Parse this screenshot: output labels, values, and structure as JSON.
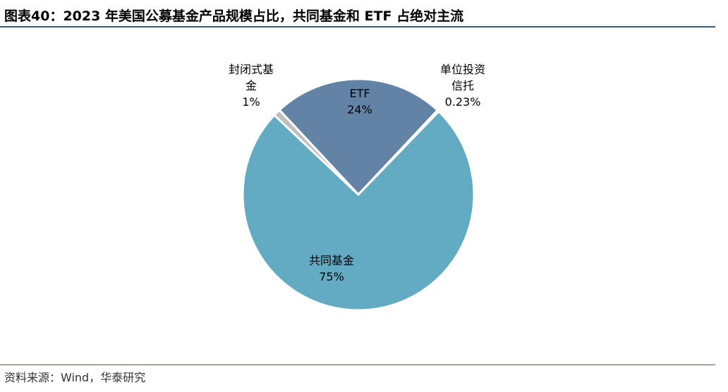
{
  "title": "图表40：2023 年美国公募基金产品规模占比，共同基金和 ETF 占绝对主流",
  "source": "资料来源：Wind，华泰研究",
  "chart_data": {
    "type": "pie",
    "slices": [
      {
        "name": "ETF",
        "value": 24,
        "value_label": "24%",
        "color": "#6283a6",
        "label_lines": [
          "ETF"
        ]
      },
      {
        "name": "单位投资信托",
        "value": 0.23,
        "value_label": "0.23%",
        "color": "#8db4d9",
        "label_lines": [
          "单位投资",
          "信托"
        ]
      },
      {
        "name": "共同基金",
        "value": 75,
        "value_label": "75%",
        "color": "#63aac3",
        "label_lines": [
          "共同基金"
        ]
      },
      {
        "name": "封闭式基金",
        "value": 1,
        "value_label": "1%",
        "color": "#bfbfbf",
        "label_lines": [
          "封闭式基",
          "金"
        ]
      }
    ]
  }
}
